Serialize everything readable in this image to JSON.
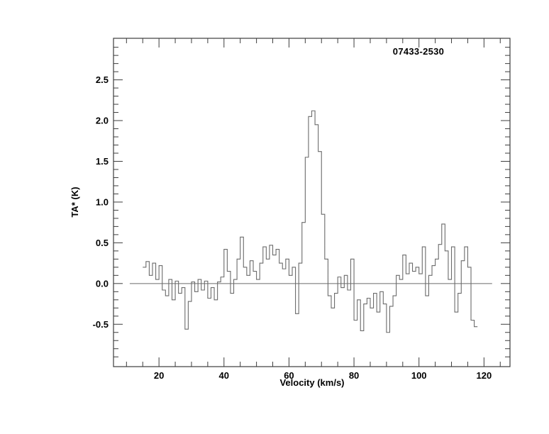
{
  "chart_data": {
    "type": "line",
    "style": "histogram-step-spectrum",
    "title": "07433-2530",
    "xlabel": "Velocity (km/s)",
    "ylabel": "TA* (K)",
    "xlim": [
      6,
      128
    ],
    "ylim": [
      -1.02,
      3.01
    ],
    "grid": false,
    "legend": "none",
    "x_major_ticks": [
      20,
      40,
      60,
      80,
      100,
      120
    ],
    "x_tick_labels": [
      "20",
      "40",
      "60",
      "80",
      "100",
      "120"
    ],
    "x_minor_step": 5,
    "y_major_ticks": [
      -0.5,
      0.0,
      0.5,
      1.0,
      1.5,
      2.0,
      2.5
    ],
    "y_tick_labels": [
      "-0.5",
      "0.0",
      "0.5",
      "1.0",
      "1.5",
      "2.0",
      "2.5"
    ],
    "y_minor_step": 0.1,
    "baseline": {
      "value": 0.0,
      "x_start": 11,
      "x_end": 122.5
    },
    "axis_color": "#3d3d3d",
    "line_color": "#6b6b6b",
    "label_color": "#000000",
    "channel_width": 1.0,
    "peak": {
      "velocity": 67.5,
      "value": 2.12
    },
    "velocities": [
      15.5,
      16.5,
      17.5,
      18.5,
      19.5,
      20.5,
      21.5,
      22.5,
      23.5,
      24.5,
      25.5,
      26.5,
      27.5,
      28.5,
      29.5,
      30.5,
      31.5,
      32.5,
      33.5,
      34.5,
      35.5,
      36.5,
      37.5,
      38.5,
      39.5,
      40.5,
      41.5,
      42.5,
      43.5,
      44.5,
      45.5,
      46.5,
      47.5,
      48.5,
      49.5,
      50.5,
      51.5,
      52.5,
      53.5,
      54.5,
      55.5,
      56.5,
      57.5,
      58.5,
      59.5,
      60.5,
      61.5,
      62.5,
      63.5,
      64.5,
      65.5,
      66.5,
      67.5,
      68.5,
      69.5,
      70.5,
      71.5,
      72.5,
      73.5,
      74.5,
      75.5,
      76.5,
      77.5,
      78.5,
      79.5,
      80.5,
      81.5,
      82.5,
      83.5,
      84.5,
      85.5,
      86.5,
      87.5,
      88.5,
      89.5,
      90.5,
      91.5,
      92.5,
      93.5,
      94.5,
      95.5,
      96.5,
      97.5,
      98.5,
      99.5,
      100.5,
      101.5,
      102.5,
      103.5,
      104.5,
      105.5,
      106.5,
      107.5,
      108.5,
      109.5,
      110.5,
      111.5,
      112.5,
      113.5,
      114.5,
      115.5,
      116.5,
      117.5
    ],
    "values": [
      0.2,
      0.27,
      0.1,
      0.25,
      0.05,
      0.22,
      -0.08,
      -0.15,
      0.05,
      -0.2,
      0.03,
      -0.12,
      -0.05,
      -0.56,
      -0.22,
      0.02,
      -0.1,
      0.05,
      -0.08,
      0.03,
      -0.18,
      -0.05,
      -0.2,
      0.02,
      0.08,
      0.42,
      0.15,
      -0.12,
      0.05,
      0.3,
      0.57,
      0.2,
      0.1,
      0.28,
      0.15,
      0.05,
      0.25,
      0.45,
      0.3,
      0.47,
      0.35,
      0.42,
      0.25,
      0.18,
      0.3,
      0.1,
      0.2,
      -0.37,
      0.25,
      0.75,
      1.55,
      2.05,
      2.12,
      1.95,
      1.62,
      0.85,
      0.3,
      -0.15,
      -0.3,
      -0.12,
      0.08,
      -0.05,
      0.1,
      -0.08,
      0.3,
      -0.45,
      -0.2,
      -0.58,
      -0.25,
      -0.18,
      -0.3,
      -0.12,
      -0.35,
      -0.1,
      -0.25,
      -0.6,
      -0.28,
      -0.15,
      0.1,
      0.05,
      0.35,
      0.12,
      0.25,
      0.15,
      0.2,
      0.12,
      0.45,
      -0.15,
      0.1,
      0.22,
      0.3,
      0.48,
      0.73,
      0.4,
      0.05,
      0.45,
      -0.35,
      -0.12,
      0.28,
      0.45,
      0.2,
      -0.45,
      -0.53
    ]
  }
}
